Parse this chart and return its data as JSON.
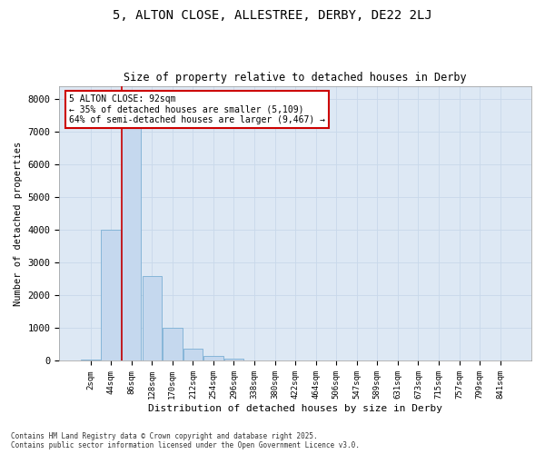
{
  "title1": "5, ALTON CLOSE, ALLESTREE, DERBY, DE22 2LJ",
  "title2": "Size of property relative to detached houses in Derby",
  "xlabel": "Distribution of detached houses by size in Derby",
  "ylabel": "Number of detached properties",
  "categories": [
    "2sqm",
    "44sqm",
    "86sqm",
    "128sqm",
    "170sqm",
    "212sqm",
    "254sqm",
    "296sqm",
    "338sqm",
    "380sqm",
    "422sqm",
    "464sqm",
    "506sqm",
    "547sqm",
    "589sqm",
    "631sqm",
    "673sqm",
    "715sqm",
    "757sqm",
    "799sqm",
    "841sqm"
  ],
  "values": [
    30,
    4000,
    7400,
    2600,
    1000,
    380,
    150,
    80,
    0,
    0,
    0,
    0,
    0,
    0,
    0,
    0,
    0,
    0,
    0,
    0,
    0
  ],
  "bar_color": "#c5d8ee",
  "bar_edge_color": "#7aafd4",
  "vline_color": "#cc0000",
  "annotation_text": "5 ALTON CLOSE: 92sqm\n← 35% of detached houses are smaller (5,109)\n64% of semi-detached houses are larger (9,467) →",
  "annotation_box_color": "#ffffff",
  "annotation_box_edge": "#cc0000",
  "ylim": [
    0,
    8400
  ],
  "yticks": [
    0,
    1000,
    2000,
    3000,
    4000,
    5000,
    6000,
    7000,
    8000
  ],
  "grid_color": "#c8d8ea",
  "bg_color": "#dde8f4",
  "footer1": "Contains HM Land Registry data © Crown copyright and database right 2025.",
  "footer2": "Contains public sector information licensed under the Open Government Licence v3.0."
}
